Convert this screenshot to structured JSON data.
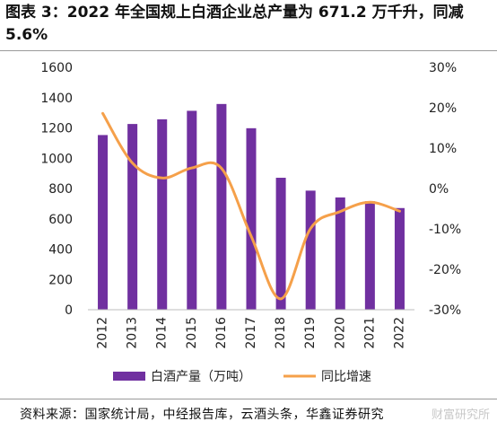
{
  "title": "图表 3：2022 年全国规上白酒企业总产量为 671.2 万千升，同减5.6%",
  "source": "资料来源：国家统计局，中经报告库，云酒头条，华鑫证券研究",
  "watermark": "财富研究所",
  "chart_data": {
    "type": "bar",
    "categories": [
      "2012",
      "2013",
      "2014",
      "2015",
      "2016",
      "2017",
      "2018",
      "2019",
      "2020",
      "2021",
      "2022"
    ],
    "series": [
      {
        "name": "白酒产量（万吨）",
        "type": "bar",
        "axis": "left",
        "color": "#7030a0",
        "values": [
          1153,
          1226,
          1257,
          1313,
          1358,
          1198,
          871,
          786,
          741,
          716,
          671
        ]
      },
      {
        "name": "同比增速",
        "type": "line",
        "axis": "right",
        "color": "#f5a04a",
        "values": [
          18.6,
          6.3,
          2.6,
          5.1,
          5.0,
          -11.8,
          -27.3,
          -9.9,
          -5.7,
          -3.4,
          -5.6
        ]
      }
    ],
    "left_axis": {
      "min": 0,
      "max": 1600,
      "ticks": [
        0,
        200,
        400,
        600,
        800,
        1000,
        1200,
        1400,
        1600
      ]
    },
    "right_axis": {
      "min": -30,
      "max": 30,
      "ticks": [
        -30,
        -20,
        -10,
        0,
        10,
        20,
        30
      ],
      "tick_labels": [
        "-30%",
        "-20%",
        "-10%",
        "0%",
        "10%",
        "20%",
        "30%"
      ]
    },
    "legend_position": "bottom"
  }
}
